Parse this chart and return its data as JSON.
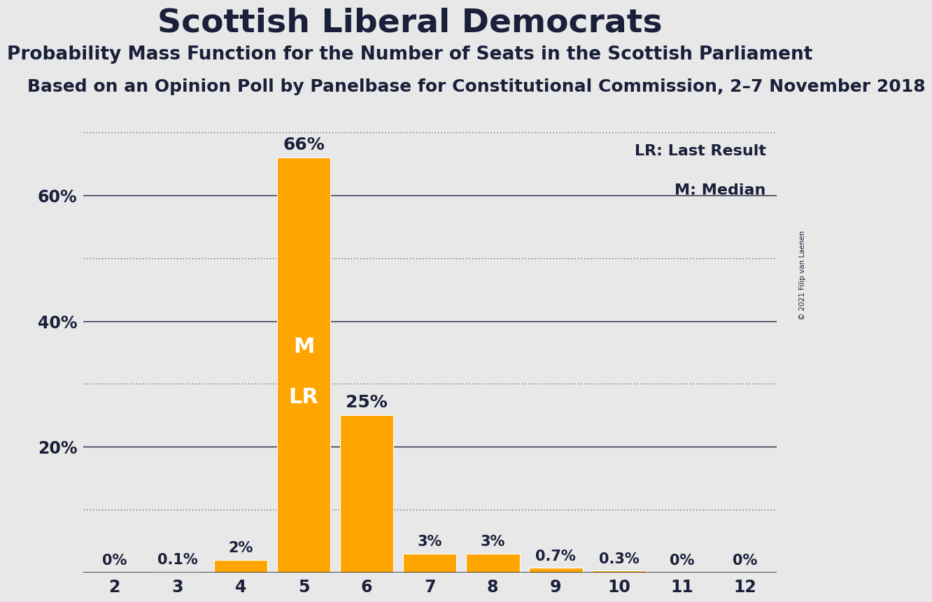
{
  "title": "Scottish Liberal Democrats",
  "subtitle1": "Probability Mass Function for the Number of Seats in the Scottish Parliament",
  "subtitle2": "Based on an Opinion Poll by Panelbase for Constitutional Commission, 2–7 November 2018",
  "copyright": "© 2021 Filip van Laenen",
  "seats": [
    2,
    3,
    4,
    5,
    6,
    7,
    8,
    9,
    10,
    11,
    12
  ],
  "values": [
    0.0,
    0.1,
    2.0,
    66.0,
    25.0,
    3.0,
    3.0,
    0.7,
    0.3,
    0.0,
    0.0
  ],
  "labels": [
    "0%",
    "0.1%",
    "2%",
    "66%",
    "25%",
    "3%",
    "3%",
    "0.7%",
    "0.3%",
    "0%",
    "0%"
  ],
  "bar_color": "#FFA500",
  "background_color": "#E8E8E8",
  "text_color": "#1a1f3a",
  "legend_lr": "LR: Last Result",
  "legend_m": "M: Median",
  "ylim": [
    0,
    70
  ],
  "yticks_solid": [
    20,
    40,
    60
  ],
  "yticks_dotted": [
    10,
    30,
    50,
    70
  ],
  "title_fontsize": 34,
  "subtitle1_fontsize": 19,
  "subtitle2_fontsize": 18
}
